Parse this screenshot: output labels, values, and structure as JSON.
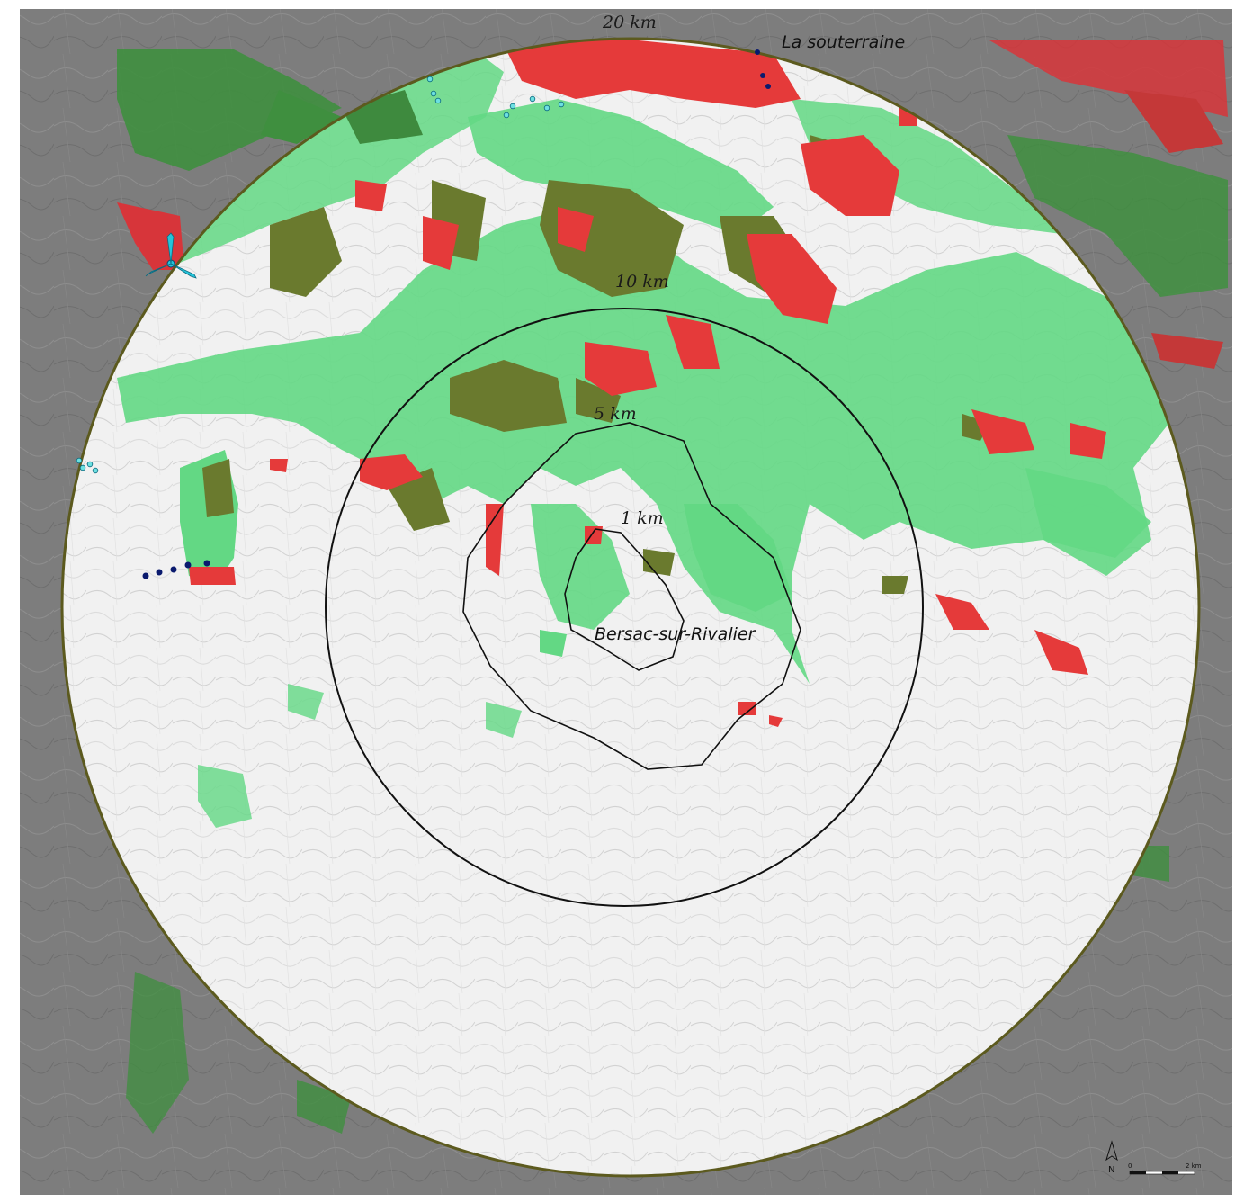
{
  "map": {
    "rings": [
      {
        "id": "ring-20km",
        "label": "20 km"
      },
      {
        "id": "ring-10km",
        "label": "10 km"
      },
      {
        "id": "ring-5km",
        "label": "5 km"
      },
      {
        "id": "ring-1km",
        "label": "1 km"
      }
    ],
    "places": {
      "center": "Bersac-sur-Rivalier",
      "north_town": "La souterraine"
    },
    "scale_bar": {
      "start": "0",
      "end": "2 km"
    },
    "north_arrow": "N",
    "icons": {
      "wind_turbine": "wind-turbine-icon",
      "north_arrow": "north-arrow-icon"
    },
    "colors": {
      "outside_background": "#7b7b7b",
      "inside_background": "#f2f2f2",
      "visibility_green_light": "#5fd97f",
      "visibility_green_dark": "#3f8f3f",
      "visibility_olive": "#6b6a2e",
      "visibility_red": "#e83a3a",
      "outer_ring_stroke": "#5c5a1e",
      "turbine_cyan": "#26c4d9",
      "marker_navy": "#0a1a6e"
    }
  }
}
